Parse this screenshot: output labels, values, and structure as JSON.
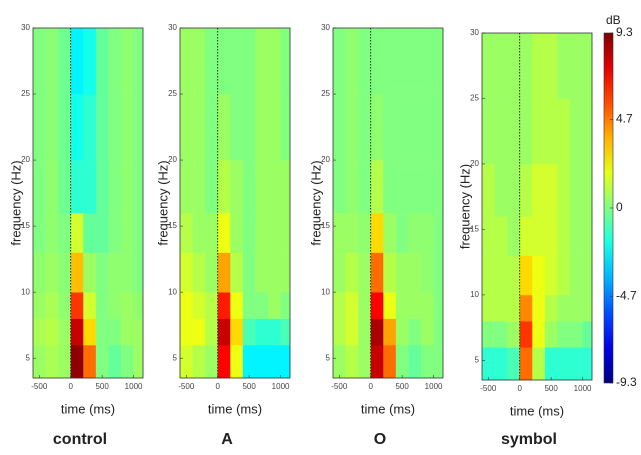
{
  "chart_data": [
    {
      "type": "heatmap",
      "title": "control",
      "x_label": "time (ms)",
      "y_label": "frequency (Hz)",
      "x_bins": [
        -600,
        -400,
        -200,
        0,
        200,
        400,
        600,
        800,
        1000,
        1150
      ],
      "y_bins": [
        3.5,
        6,
        8,
        10,
        13,
        16,
        20,
        25,
        30
      ],
      "z": [
        [
          0.5,
          0.8,
          0.5,
          9,
          5,
          0,
          -0.5,
          0,
          0.5
        ],
        [
          0.8,
          1,
          0.5,
          8,
          3,
          0,
          0,
          0.5,
          0.5
        ],
        [
          0.5,
          0.8,
          0.3,
          6,
          1.5,
          0,
          0.3,
          0.5,
          0.3
        ],
        [
          0.3,
          0.5,
          0.2,
          3.5,
          0.5,
          0,
          0.3,
          0.3,
          0
        ],
        [
          0,
          0.3,
          0,
          1.5,
          -0.5,
          -0.5,
          0,
          0.3,
          0
        ],
        [
          0,
          0.3,
          -0.3,
          -1.5,
          -1.5,
          -0.5,
          0,
          0.3,
          0
        ],
        [
          0,
          0.2,
          -0.3,
          -2,
          -1.5,
          -0.5,
          0,
          0.3,
          0
        ],
        [
          0,
          0.2,
          -0.3,
          -2.5,
          -2,
          -0.5,
          0,
          0.3,
          0
        ]
      ],
      "xlim": [
        -600,
        1150
      ],
      "ylim": [
        3.5,
        30
      ],
      "xticks": [
        -500,
        0,
        500,
        1000
      ],
      "yticks": [
        5,
        10,
        15,
        20,
        25,
        30
      ]
    },
    {
      "type": "heatmap",
      "title": "A",
      "x_label": "time (ms)",
      "y_label": "frequency (Hz)",
      "x_bins": [
        -600,
        -400,
        -200,
        0,
        200,
        400,
        600,
        800,
        1000,
        1150
      ],
      "y_bins": [
        3.5,
        6,
        8,
        10,
        13,
        16,
        20,
        25,
        30
      ],
      "z": [
        [
          1.5,
          1,
          0.5,
          7,
          2,
          -2.5,
          -2.5,
          -2.5,
          -2.5
        ],
        [
          2,
          2,
          1,
          8,
          3,
          -1,
          -1.5,
          -1.5,
          -1
        ],
        [
          2,
          1.5,
          1,
          6.5,
          2,
          0,
          0,
          0.5,
          0
        ],
        [
          1.5,
          1,
          0.5,
          4,
          1,
          0,
          0.5,
          0.5,
          0.5
        ],
        [
          1,
          0.5,
          0.5,
          2,
          0.5,
          0,
          0.5,
          0.5,
          0.5
        ],
        [
          0.5,
          0.5,
          0,
          1,
          0.5,
          0,
          0.5,
          0.5,
          0.5
        ],
        [
          0.5,
          0.5,
          0,
          0.5,
          0,
          0,
          0.5,
          0.5,
          0
        ],
        [
          0.5,
          0.5,
          0,
          0,
          0,
          0,
          0.5,
          0.5,
          0
        ]
      ],
      "xlim": [
        -600,
        1150
      ],
      "ylim": [
        3.5,
        30
      ],
      "xticks": [
        -500,
        0,
        500,
        1000
      ],
      "yticks": [
        5,
        10,
        15,
        20,
        25,
        30
      ]
    },
    {
      "type": "heatmap",
      "title": "O",
      "x_label": "time (ms)",
      "y_label": "frequency (Hz)",
      "x_bins": [
        -600,
        -400,
        -200,
        0,
        200,
        400,
        600,
        800,
        1000,
        1150
      ],
      "y_bins": [
        3.5,
        6,
        8,
        10,
        13,
        16,
        20,
        25,
        30
      ],
      "z": [
        [
          0.5,
          1,
          0.5,
          8,
          5,
          0,
          -0.5,
          0,
          0
        ],
        [
          1,
          1.5,
          0.5,
          8.5,
          4,
          0.5,
          0,
          0.5,
          0
        ],
        [
          1,
          1.5,
          0.5,
          7,
          2,
          0.5,
          0.5,
          0.5,
          0
        ],
        [
          0.5,
          1,
          0.5,
          5,
          1,
          0.5,
          0.5,
          0.3,
          0
        ],
        [
          0.5,
          0.5,
          0.3,
          3,
          0.5,
          0,
          0.3,
          0.3,
          0
        ],
        [
          0,
          0.3,
          0,
          1,
          0,
          0,
          0,
          0,
          0
        ],
        [
          0,
          0.3,
          0,
          0.3,
          0,
          0,
          0,
          0,
          0
        ],
        [
          0,
          0.3,
          0,
          0,
          0,
          0,
          0,
          0,
          0
        ]
      ],
      "xlim": [
        -600,
        1150
      ],
      "ylim": [
        3.5,
        30
      ],
      "xticks": [
        -500,
        0,
        500,
        1000
      ],
      "yticks": [
        5,
        10,
        15,
        20,
        25,
        30
      ]
    },
    {
      "type": "heatmap",
      "title": "symbol",
      "x_label": "time (ms)",
      "y_label": "frequency (Hz)",
      "x_bins": [
        -600,
        -400,
        -200,
        0,
        200,
        400,
        600,
        800,
        1000,
        1150
      ],
      "y_bins": [
        3.5,
        6,
        8,
        10,
        13,
        16,
        20,
        25,
        30
      ],
      "z": [
        [
          -1.5,
          -1.5,
          -1,
          5,
          1,
          -1.5,
          -1.5,
          -1.5,
          -1.5
        ],
        [
          0,
          0,
          0.5,
          6,
          2,
          0.5,
          0,
          0,
          -0.5
        ],
        [
          1,
          1,
          1,
          4.5,
          2,
          1,
          0.5,
          0.5,
          0.5
        ],
        [
          1,
          1,
          1,
          3,
          2,
          1.5,
          1,
          0.5,
          0.5
        ],
        [
          1,
          1,
          0.5,
          1.5,
          1.5,
          1.5,
          1,
          0.5,
          0.5
        ],
        [
          1,
          0.5,
          0.5,
          1,
          1.5,
          1.5,
          1,
          0.5,
          0.5
        ],
        [
          0.5,
          0.5,
          0.5,
          0.5,
          1,
          1,
          1,
          0.5,
          0.5
        ],
        [
          0.5,
          0.5,
          0.5,
          0.5,
          1,
          1,
          0.5,
          0.5,
          0.5
        ]
      ],
      "xlim": [
        -600,
        1150
      ],
      "ylim": [
        3.5,
        30
      ],
      "xticks": [
        -500,
        0,
        500,
        1000
      ],
      "yticks": [
        5,
        10,
        15,
        20,
        25,
        30
      ]
    }
  ],
  "colorbar": {
    "label": "dB",
    "lim": [
      -9.3,
      9.3
    ],
    "ticks": [
      9.3,
      4.7,
      0,
      -4.7,
      -9.3
    ]
  }
}
